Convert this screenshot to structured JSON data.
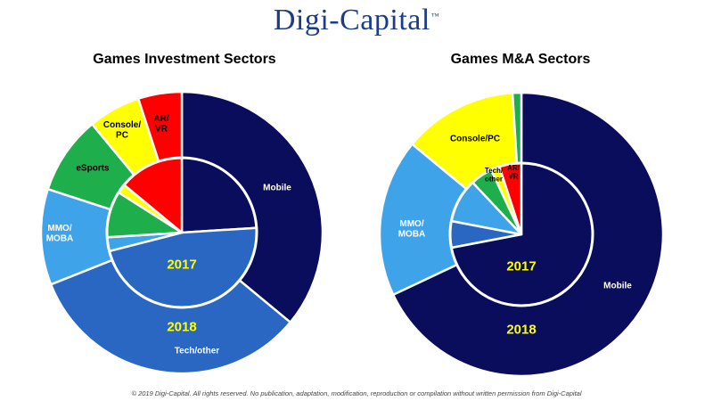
{
  "logo": {
    "text": "Digi-Capital",
    "mark": "™"
  },
  "footer": "© 2019 Digi-Capital. All rights reserved. No publication, adaptation, modification, reproduction or compilation without written permission from Digi-Capital",
  "colors": {
    "Mobile": "#0a0c5c",
    "Tech/other": "#2a67c2",
    "MMO/MOBA": "#3fa3ea",
    "eSports": "#1eae4b",
    "Console/PC": "#ffff00",
    "AR/VR": "#ff0000",
    "year_label": "#ffff00",
    "outer_label": "#000000",
    "dark_label": "#ffffff"
  },
  "chart_data": [
    {
      "type": "pie",
      "title": "Games Investment Sectors",
      "center_label": "2017",
      "outer_label": "2018",
      "rings": [
        {
          "year": "2018",
          "ring": "outer",
          "slices": [
            {
              "label": "Mobile",
              "value": 36
            },
            {
              "label": "Tech/other",
              "value": 33
            },
            {
              "label": "MMO/MOBA",
              "value": 11
            },
            {
              "label": "eSports",
              "value": 9
            },
            {
              "label": "Console/PC",
              "value": 6
            },
            {
              "label": "AR/VR",
              "value": 5
            }
          ]
        },
        {
          "year": "2017",
          "ring": "inner",
          "slices": [
            {
              "label": "Mobile",
              "value": 24
            },
            {
              "label": "Tech/other",
              "value": 47
            },
            {
              "label": "MMO/MOBA",
              "value": 3
            },
            {
              "label": "eSports",
              "value": 10
            },
            {
              "label": "Console/PC",
              "value": 2
            },
            {
              "label": "AR/VR",
              "value": 14
            }
          ]
        }
      ],
      "slice_labels": [
        {
          "label": "Mobile",
          "text": [
            "Mobile"
          ]
        },
        {
          "label": "Tech/other",
          "text": [
            "Tech/other"
          ]
        },
        {
          "label": "MMO/MOBA",
          "text": [
            "MMO/",
            "MOBA"
          ]
        },
        {
          "label": "eSports",
          "text": [
            "eSports"
          ]
        },
        {
          "label": "Console/PC",
          "text": [
            "Console/",
            "PC"
          ]
        },
        {
          "label": "AR/VR",
          "text": [
            "AR/",
            "VR"
          ]
        }
      ]
    },
    {
      "type": "pie",
      "title": "Games M&A Sectors",
      "center_label": "2017",
      "outer_label": "2018",
      "rings": [
        {
          "year": "2018",
          "ring": "outer",
          "slices": [
            {
              "label": "Mobile",
              "value": 68
            },
            {
              "label": "MMO/MOBA",
              "value": 18
            },
            {
              "label": "Console/PC",
              "value": 13
            },
            {
              "label": "eSports",
              "value": 1
            }
          ]
        },
        {
          "year": "2017",
          "ring": "inner",
          "slices": [
            {
              "label": "Mobile",
              "value": 72
            },
            {
              "label": "Tech/other",
              "value": 6
            },
            {
              "label": "MMO/MOBA",
              "value": 10
            },
            {
              "label": "eSports",
              "value": 5
            },
            {
              "label": "Console/PC",
              "value": 2
            },
            {
              "label": "AR/VR",
              "value": 5
            }
          ]
        }
      ],
      "slice_labels": [
        {
          "label": "Mobile",
          "text": [
            "Mobile"
          ]
        },
        {
          "label": "MMO/MOBA",
          "text": [
            "MMO/",
            "MOBA"
          ]
        },
        {
          "label": "Console/PC",
          "text": [
            "Console/PC"
          ]
        },
        {
          "label": "Tech/other",
          "text": [
            "Tech/",
            "other"
          ]
        },
        {
          "label": "AR/VR",
          "text": [
            "AR/",
            "VR"
          ]
        }
      ]
    }
  ]
}
